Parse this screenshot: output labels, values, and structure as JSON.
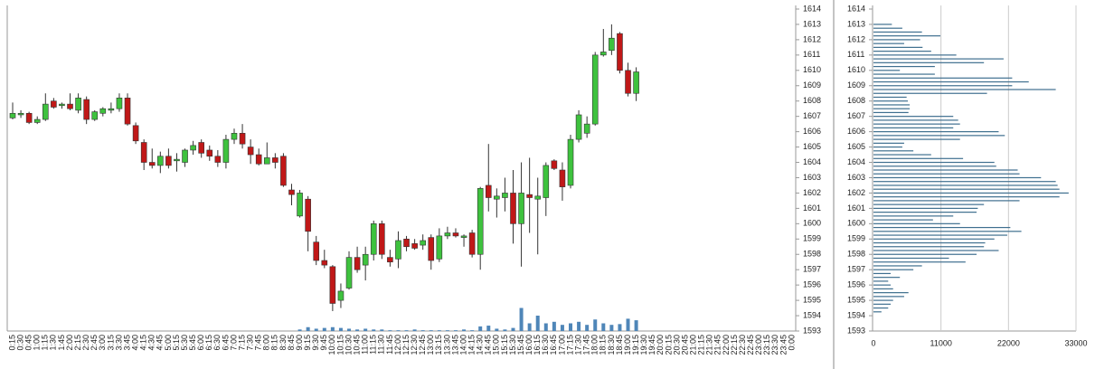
{
  "chart_data": [
    {
      "type": "candlestick",
      "categories": [
        "0:15",
        "0:30",
        "0:45",
        "1:00",
        "1:15",
        "1:30",
        "1:45",
        "2:00",
        "2:15",
        "2:30",
        "2:45",
        "3:00",
        "3:15",
        "3:30",
        "3:45",
        "4:00",
        "4:15",
        "4:30",
        "4:45",
        "5:00",
        "5:15",
        "5:30",
        "5:45",
        "6:00",
        "6:15",
        "6:30",
        "6:45",
        "7:00",
        "7:15",
        "7:30",
        "7:45",
        "8:00",
        "8:15",
        "8:30",
        "8:45",
        "9:00",
        "9:15",
        "9:30",
        "9:45",
        "10:00",
        "10:15",
        "10:30",
        "10:45",
        "11:00",
        "11:15",
        "11:30",
        "11:45",
        "12:00",
        "12:15",
        "12:30",
        "12:45",
        "13:00",
        "13:15",
        "13:30",
        "13:45",
        "14:00",
        "14:15",
        "14:30",
        "14:45",
        "15:00",
        "15:15",
        "15:30",
        "15:45",
        "16:00",
        "16:15",
        "16:30",
        "16:45",
        "17:00",
        "17:15",
        "17:30",
        "17:45",
        "18:00",
        "18:15",
        "18:30",
        "18:45",
        "19:00",
        "19:15",
        "19:30",
        "19:45",
        "20:00",
        "20:15",
        "20:30",
        "20:45",
        "21:00",
        "21:15",
        "21:30",
        "21:45",
        "22:00",
        "22:15",
        "22:30",
        "22:45",
        "23:00",
        "23:15",
        "23:30",
        "23:45",
        "0:00"
      ],
      "open": [
        1606.9,
        1607.1,
        1607.2,
        1606.6,
        1606.8,
        1608.0,
        1607.7,
        1607.8,
        1607.4,
        1608.1,
        1606.8,
        1607.2,
        1607.4,
        1607.5,
        1608.2,
        1606.4,
        1605.3,
        1604.0,
        1603.8,
        1604.4,
        1604.1,
        1604.0,
        1604.8,
        1605.3,
        1604.8,
        1604.4,
        1604.0,
        1605.5,
        1605.9,
        1605.0,
        1604.5,
        1603.9,
        1604.3,
        1604.4,
        1602.2,
        1600.5,
        1601.6,
        1598.8,
        1597.6,
        1597.2,
        1595.0,
        1595.8,
        1597.8,
        1597.3,
        1598.0,
        1600.0,
        1597.8,
        1597.7,
        1599.0,
        1598.7,
        1598.6,
        1599.1,
        1597.7,
        1599.2,
        1599.4,
        1599.1,
        1599.4,
        1598.0,
        1602.5,
        1601.6,
        1601.7,
        1602.0,
        1600.0,
        1601.9,
        1601.6,
        1601.7,
        1604.1,
        1603.5,
        1602.5,
        1605.5,
        1605.9,
        1606.5,
        1611.0,
        1611.3,
        1612.4,
        1610.0,
        1608.5,
        null,
        null,
        null,
        null,
        null,
        null,
        null,
        null,
        null,
        null,
        null,
        null,
        null,
        null,
        null,
        null,
        null,
        null,
        null
      ],
      "high": [
        1607.9,
        1607.4,
        1607.3,
        1607.0,
        1608.5,
        1608.2,
        1607.9,
        1608.5,
        1608.5,
        1608.3,
        1607.4,
        1607.6,
        1607.9,
        1608.5,
        1608.5,
        1606.6,
        1605.5,
        1604.9,
        1604.7,
        1604.9,
        1604.6,
        1604.9,
        1605.4,
        1605.5,
        1605.1,
        1604.8,
        1605.8,
        1606.2,
        1606.5,
        1605.5,
        1604.9,
        1605.3,
        1604.6,
        1604.6,
        1602.6,
        1602.2,
        1601.8,
        1599.2,
        1598.3,
        1597.3,
        1596.1,
        1598.2,
        1598.5,
        1598.5,
        1600.2,
        1600.2,
        1598.3,
        1599.5,
        1599.2,
        1599.0,
        1599.3,
        1599.3,
        1599.7,
        1599.8,
        1599.7,
        1599.3,
        1599.6,
        1602.4,
        1605.2,
        1602.3,
        1603.0,
        1603.5,
        1604.0,
        1604.3,
        1603.0,
        1604.0,
        1604.2,
        1604.0,
        1605.8,
        1607.4,
        1607.0,
        1611.2,
        1612.7,
        1613.0,
        1612.5,
        1610.5,
        1610.2,
        null,
        null,
        null,
        null,
        null,
        null,
        null,
        null,
        null,
        null,
        null,
        null,
        null,
        null,
        null,
        null,
        null,
        null,
        null
      ],
      "low": [
        1606.8,
        1606.9,
        1606.5,
        1606.5,
        1606.7,
        1607.5,
        1607.5,
        1607.4,
        1607.2,
        1606.5,
        1606.7,
        1607.0,
        1607.2,
        1607.3,
        1606.4,
        1605.2,
        1603.5,
        1603.6,
        1603.3,
        1603.6,
        1603.4,
        1603.7,
        1604.5,
        1604.3,
        1604.1,
        1603.7,
        1603.6,
        1605.2,
        1604.9,
        1603.9,
        1603.8,
        1603.9,
        1603.6,
        1602.4,
        1601.2,
        1600.4,
        1598.2,
        1597.3,
        1597.1,
        1594.3,
        1594.5,
        1595.7,
        1596.8,
        1596.3,
        1597.6,
        1597.7,
        1597.2,
        1597.1,
        1598.2,
        1598.3,
        1598.3,
        1597.0,
        1597.5,
        1599.0,
        1599.1,
        1598.5,
        1597.8,
        1597.0,
        1600.8,
        1600.4,
        1600.8,
        1598.7,
        1597.2,
        1599.4,
        1598.0,
        1600.5,
        1603.5,
        1601.5,
        1602.3,
        1605.3,
        1605.6,
        1606.4,
        1610.9,
        1611.0,
        1609.8,
        1608.3,
        1608.0,
        null,
        null,
        null,
        null,
        null,
        null,
        null,
        null,
        null,
        null,
        null,
        null,
        null,
        null,
        null,
        null,
        null,
        null,
        null
      ],
      "close": [
        1607.2,
        1607.2,
        1606.6,
        1606.8,
        1607.8,
        1607.6,
        1607.8,
        1607.5,
        1608.2,
        1606.8,
        1607.3,
        1607.5,
        1607.5,
        1608.2,
        1606.5,
        1605.4,
        1604.0,
        1603.8,
        1604.4,
        1603.8,
        1604.2,
        1604.8,
        1605.1,
        1604.6,
        1604.4,
        1604.0,
        1605.5,
        1605.9,
        1605.2,
        1604.5,
        1603.9,
        1604.3,
        1604.0,
        1602.5,
        1601.9,
        1602.0,
        1599.5,
        1597.6,
        1597.3,
        1594.8,
        1595.6,
        1597.8,
        1597.0,
        1598.0,
        1600.0,
        1598.0,
        1597.5,
        1598.9,
        1598.5,
        1598.4,
        1598.9,
        1597.6,
        1599.2,
        1599.4,
        1599.2,
        1599.2,
        1598.0,
        1602.3,
        1601.7,
        1601.8,
        1602.0,
        1600.0,
        1602.0,
        1601.7,
        1601.8,
        1603.8,
        1603.6,
        1602.4,
        1605.5,
        1607.1,
        1606.5,
        1611.0,
        1611.2,
        1612.1,
        1610.0,
        1608.5,
        1609.9,
        null,
        null,
        null,
        null,
        null,
        null,
        null,
        null,
        null,
        null,
        null,
        null,
        null,
        null,
        null,
        null,
        null,
        null,
        null
      ],
      "volume": [
        0,
        0,
        0,
        0,
        0,
        0,
        0,
        0,
        0,
        0,
        0,
        0,
        0,
        0,
        0,
        0,
        0,
        0,
        0,
        0,
        0,
        0,
        0,
        0,
        0,
        0,
        0,
        0,
        0,
        0,
        0,
        0,
        0,
        0,
        0,
        2,
        5,
        3,
        4,
        5,
        4,
        3,
        2,
        3,
        2,
        2,
        1,
        1,
        1,
        2,
        1,
        1,
        1,
        1,
        1,
        2,
        1,
        6,
        7,
        3,
        2,
        4,
        30,
        10,
        20,
        10,
        12,
        8,
        10,
        12,
        8,
        15,
        10,
        8,
        9,
        16,
        14,
        null,
        null,
        null,
        null,
        null,
        null,
        null,
        null,
        null,
        null,
        null,
        null,
        null,
        null,
        null,
        null,
        null,
        null,
        null
      ],
      "volume_lim": [
        0,
        100
      ],
      "up_color": "#3ec23e",
      "down_color": "#c01818",
      "volume_color": "#4f86b8",
      "ylim": [
        1593,
        1614
      ],
      "yticks": [
        1593,
        1594,
        1595,
        1596,
        1597,
        1598,
        1599,
        1600,
        1601,
        1602,
        1603,
        1604,
        1605,
        1606,
        1607,
        1608,
        1609,
        1610,
        1611,
        1612,
        1613,
        1614
      ]
    },
    {
      "type": "hbar",
      "y": [
        1594.25,
        1594.5,
        1594.75,
        1595,
        1595.25,
        1595.5,
        1595.75,
        1596,
        1596.25,
        1596.5,
        1596.75,
        1597,
        1597.25,
        1597.5,
        1597.75,
        1598,
        1598.25,
        1598.5,
        1598.75,
        1599,
        1599.25,
        1599.5,
        1599.75,
        1600,
        1600.25,
        1600.5,
        1600.75,
        1601,
        1601.25,
        1601.5,
        1601.75,
        1602,
        1602.25,
        1602.5,
        1602.75,
        1603,
        1603.25,
        1603.5,
        1603.75,
        1604,
        1604.25,
        1604.5,
        1604.75,
        1605,
        1605.25,
        1605.5,
        1605.75,
        1606,
        1606.25,
        1606.5,
        1606.75,
        1607,
        1607.25,
        1607.5,
        1607.75,
        1608,
        1608.25,
        1608.5,
        1608.75,
        1609,
        1609.25,
        1609.5,
        1609.75,
        1610,
        1610.25,
        1610.5,
        1610.75,
        1611,
        1611.25,
        1611.5,
        1611.75,
        1612,
        1612.25,
        1612.5,
        1612.75,
        1613
      ],
      "values": [
        1300,
        2400,
        2800,
        3200,
        5000,
        5700,
        3200,
        2800,
        2400,
        4300,
        2800,
        6500,
        7900,
        15000,
        12300,
        16800,
        20400,
        18000,
        18200,
        19700,
        21800,
        24100,
        22300,
        14100,
        9700,
        13000,
        16800,
        17000,
        18000,
        23800,
        30300,
        31800,
        30300,
        30000,
        29700,
        27300,
        23800,
        23500,
        20000,
        19700,
        14600,
        9400,
        6500,
        4700,
        5000,
        14100,
        21400,
        20400,
        13000,
        14100,
        13800,
        13000,
        5700,
        5900,
        5900,
        5600,
        5400,
        18500,
        29700,
        22600,
        25300,
        22600,
        10000,
        4300,
        10000,
        18000,
        21200,
        13500,
        9400,
        8000,
        5000,
        7600,
        10900,
        7900,
        4700,
        3000
      ],
      "color": "#3f6f8f",
      "xlim": [
        0,
        33000
      ],
      "xticks": [
        0,
        11000,
        22000,
        33000
      ],
      "grid": true,
      "ylim": [
        1593,
        1614
      ],
      "yticks": [
        1593,
        1594,
        1595,
        1596,
        1597,
        1598,
        1599,
        1600,
        1601,
        1602,
        1603,
        1604,
        1605,
        1606,
        1607,
        1608,
        1609,
        1610,
        1611,
        1612,
        1613,
        1614
      ]
    }
  ]
}
